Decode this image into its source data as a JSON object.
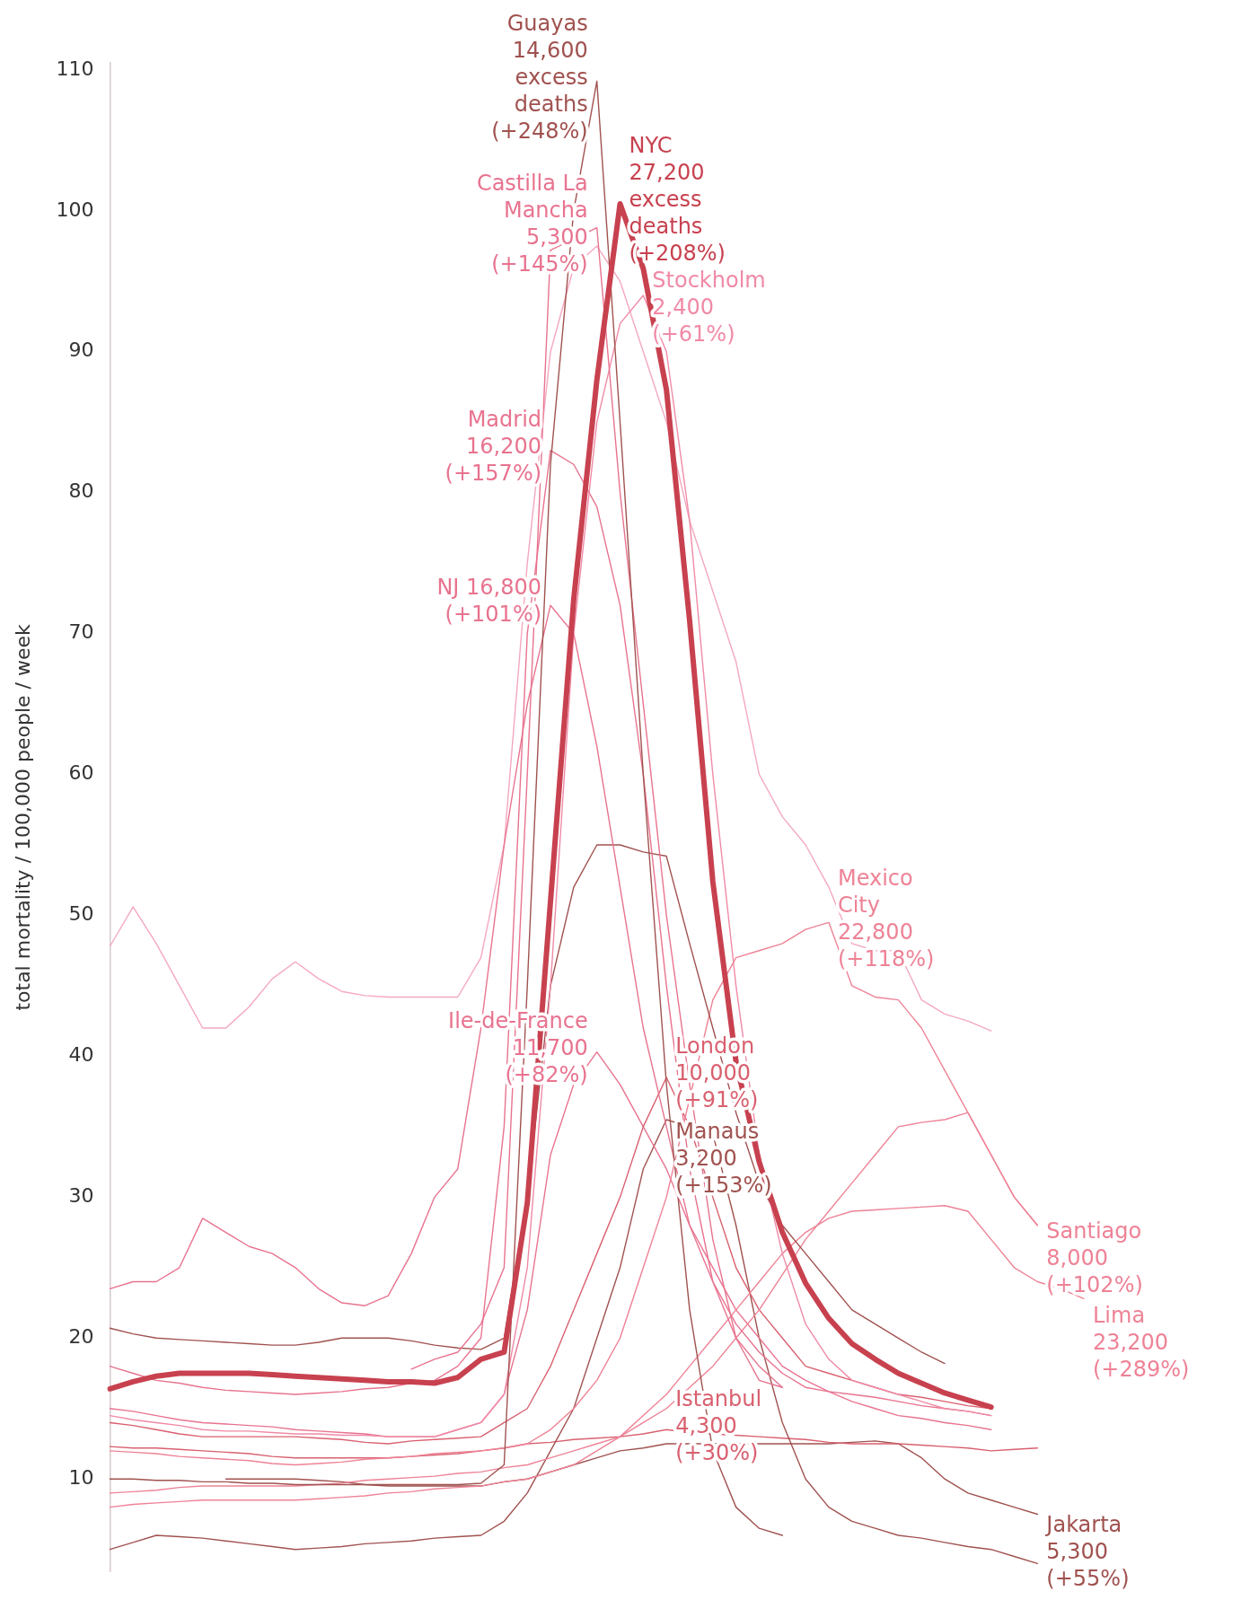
{
  "chart_data": {
    "type": "line",
    "ylabel": "total mortality / 100,000 people / week",
    "categories": [
      null,
      null,
      null,
      null,
      null,
      null,
      null,
      null,
      null,
      null,
      null,
      null,
      null,
      null,
      null,
      null,
      null,
      null,
      null,
      null,
      null,
      null,
      null,
      null,
      null,
      null,
      null,
      null,
      null,
      null,
      null,
      null,
      null,
      null,
      null,
      null,
      null,
      null,
      null,
      null,
      null,
      null,
      null
    ],
    "ylim": [
      3.4,
      110.5
    ],
    "yticks": [
      10,
      20,
      30,
      40,
      50,
      60,
      70,
      80,
      90,
      100,
      110
    ],
    "tick_labels": "y",
    "grid": false,
    "legend": false,
    "marker": "none",
    "line_style": "solid",
    "series": [
      {
        "name": "NYC 27,200 excess deaths (+208%)",
        "color": "#c8414f",
        "values": [
          16.4,
          16.9,
          17.3,
          17.5,
          17.5,
          17.5,
          17.5,
          17.4,
          17.3,
          17.2,
          17.1,
          17.0,
          16.9,
          16.9,
          16.8,
          17.2,
          18.5,
          19,
          29.6,
          51,
          72.4,
          88,
          100.5,
          95.9,
          87.3,
          70.9,
          52.4,
          39.6,
          32.5,
          27.5,
          23.9,
          21.4,
          19.6,
          18.5,
          17.5,
          16.8,
          16.1,
          15.6,
          15.1,
          null,
          null,
          null,
          null
        ]
      },
      {
        "name": "Guayas 14,600 excess deaths (+248%)",
        "color": "#a0524f",
        "values": [
          10,
          10,
          9.9,
          9.9,
          9.8,
          9.8,
          9.7,
          9.7,
          9.6,
          9.6,
          9.6,
          9.6,
          9.6,
          9.6,
          9.6,
          9.6,
          9.7,
          11,
          45,
          82,
          100,
          109.2,
          85,
          60,
          38,
          22,
          12,
          8,
          6.5,
          6,
          null,
          null,
          null,
          null,
          null,
          null,
          null,
          null,
          null,
          null,
          null,
          null,
          null
        ]
      },
      {
        "name": "Castilla La Mancha 5,300 (+145%)",
        "color": "#e8738f",
        "values": [
          null,
          null,
          null,
          null,
          null,
          null,
          null,
          null,
          null,
          null,
          null,
          null,
          null,
          17.8,
          18.5,
          19,
          21,
          25,
          60,
          97.2,
          98,
          98.8,
          80,
          65,
          50,
          38,
          27,
          20,
          17,
          16.5,
          null,
          null,
          null,
          null,
          null,
          null,
          null,
          null,
          null,
          null,
          null,
          null,
          null
        ]
      },
      {
        "name": "Stockholm 2,400 (+61%)",
        "color": "#f08aa6",
        "values": [
          14.5,
          14.2,
          14,
          13.8,
          13.5,
          13.4,
          13.4,
          13.3,
          13.2,
          13.2,
          13.1,
          13.1,
          13,
          13,
          13,
          13.5,
          14,
          16,
          25,
          45,
          70,
          85,
          92,
          94,
          90,
          78,
          60,
          45,
          33,
          26,
          21,
          18.5,
          17,
          16.5,
          16,
          15.5,
          15,
          14.8,
          14.5,
          null,
          null,
          null,
          null
        ]
      },
      {
        "name": "Madrid 16,200 (+157%)",
        "color": "#e8738f",
        "values": [
          18,
          17.5,
          17,
          16.8,
          16.5,
          16.3,
          16.2,
          16.1,
          16,
          16.1,
          16.2,
          16.4,
          16.5,
          16.8,
          17,
          18,
          20,
          35,
          70,
          83,
          82,
          79,
          72,
          60,
          45,
          32,
          24,
          20,
          18,
          16.5,
          null,
          null,
          null,
          null,
          null,
          null,
          null,
          null,
          null,
          null,
          null,
          null,
          null
        ]
      },
      {
        "name": "NJ 16,800 (+101%)",
        "color": "#e8738f",
        "values": [
          23.5,
          24,
          24,
          25,
          28.5,
          27.5,
          26.5,
          26,
          25,
          23.5,
          22.5,
          22.3,
          23,
          26,
          30,
          32,
          42,
          55,
          65,
          72,
          70,
          62,
          52,
          42,
          35,
          28,
          24,
          21,
          19,
          17.5,
          16.5,
          16.2,
          16,
          15.8,
          15.5,
          15.2,
          15,
          14.8,
          14.5,
          null,
          null,
          null,
          null
        ]
      },
      {
        "color": "#f4a8bf",
        "values": [
          47.8,
          50.6,
          48,
          45,
          42,
          42,
          43.5,
          45.5,
          46.7,
          45.5,
          44.6,
          44.3,
          44.2,
          44.2,
          44.2,
          44.2,
          47,
          55,
          75,
          90,
          96,
          97.5,
          95,
          90,
          85,
          78,
          73,
          68,
          60,
          57,
          55,
          52,
          48,
          47.5,
          47.5,
          44,
          43,
          42.5,
          41.8,
          null,
          null,
          null,
          null
        ]
      },
      {
        "color": "#a0524f",
        "values": [
          20.7,
          20.3,
          20,
          19.9,
          19.8,
          19.7,
          19.6,
          19.5,
          19.5,
          19.7,
          20,
          20,
          20,
          19.8,
          19.5,
          19.3,
          19.2,
          20,
          30,
          45,
          52,
          55,
          55,
          54.5,
          54.2,
          48,
          42,
          36,
          31,
          28,
          26,
          24,
          22,
          21,
          20,
          19,
          18.2,
          null,
          null,
          null,
          null,
          null,
          null
        ]
      },
      {
        "name": "Mexico City 22,800 (+118%)",
        "color": "#ee8296",
        "values": [
          12,
          11.9,
          11.8,
          11.6,
          11.5,
          11.4,
          11.3,
          11.1,
          11,
          11.1,
          11.2,
          11.4,
          11.5,
          11.6,
          11.8,
          11.9,
          12,
          12.2,
          12.5,
          13.5,
          15,
          17,
          20,
          25,
          30,
          37,
          44,
          47,
          47.5,
          48,
          49,
          49.5,
          45,
          44.2,
          44,
          42,
          39,
          36,
          33,
          30,
          28,
          null,
          null
        ]
      },
      {
        "name": "Lima 23,200 (+289%)",
        "color": "#ee8296",
        "values": [
          8,
          8.2,
          8.3,
          8.4,
          8.5,
          8.5,
          8.5,
          8.5,
          8.5,
          8.6,
          8.7,
          8.8,
          9,
          9.1,
          9.3,
          9.4,
          9.5,
          9.8,
          10,
          10.5,
          11,
          12,
          13,
          14.5,
          16,
          18,
          20,
          22,
          24,
          26,
          27.5,
          28.5,
          29,
          29.1,
          29.2,
          29.3,
          29.4,
          29,
          27,
          25,
          24,
          23.5,
          22.8
        ]
      },
      {
        "name": "Santiago 8,000 (+102%)",
        "color": "#ee8296",
        "values": [
          9,
          9.1,
          9.2,
          9.4,
          9.5,
          9.5,
          9.5,
          9.5,
          9.5,
          9.6,
          9.7,
          9.9,
          10,
          10.1,
          10.2,
          10.4,
          10.5,
          10.8,
          11,
          11.5,
          12,
          12.5,
          13,
          14,
          15,
          16.5,
          18,
          20,
          22,
          24.5,
          27,
          29,
          31,
          33,
          35,
          35.3,
          35.5,
          36,
          33,
          30,
          28,
          null,
          null
        ]
      },
      {
        "name": "London 10,000 (+91%)",
        "color": "#d9606f",
        "values": [
          14,
          13.8,
          13.5,
          13.2,
          13,
          13,
          13,
          13,
          13,
          12.9,
          12.8,
          12.6,
          12.5,
          12.7,
          12.8,
          12.9,
          13,
          14,
          15,
          18,
          22,
          26,
          30,
          35,
          38.5,
          35,
          30,
          25,
          22,
          20,
          18,
          17.5,
          17,
          16.5,
          16,
          15.8,
          15.5,
          15.2,
          15,
          null,
          null,
          null,
          null
        ]
      },
      {
        "name": "Ile-de-France 11,700 (+82%)",
        "color": "#e8738f",
        "values": [
          15,
          14.8,
          14.5,
          14.2,
          14,
          13.9,
          13.8,
          13.7,
          13.5,
          13.4,
          13.3,
          13.2,
          13,
          13,
          13,
          13.5,
          14,
          16,
          22,
          33,
          38,
          40.3,
          38,
          35,
          32,
          28,
          25,
          22,
          20,
          18,
          17,
          16.2,
          15.5,
          15,
          14.5,
          14.3,
          14,
          13.8,
          13.5,
          null,
          null,
          null,
          null
        ]
      },
      {
        "name": "Manaus 3,200 (+153%)",
        "color": "#a0524f",
        "values": [
          5,
          5.5,
          6,
          5.9,
          5.8,
          5.6,
          5.4,
          5.2,
          5,
          5.1,
          5.2,
          5.4,
          5.5,
          5.6,
          5.8,
          5.9,
          6,
          7,
          9,
          12,
          15,
          20,
          25,
          32,
          35.5,
          35,
          34.5,
          28,
          20,
          14,
          10,
          8,
          7,
          6.5,
          6,
          5.8,
          5.5,
          5.2,
          5,
          4.5,
          4,
          null,
          null
        ]
      },
      {
        "name": "Istanbul 4,300 (+30%)",
        "color": "#d9606f",
        "values": [
          12.3,
          12.2,
          12.2,
          12.1,
          12,
          11.9,
          11.8,
          11.6,
          11.5,
          11.5,
          11.5,
          11.5,
          11.5,
          11.6,
          11.7,
          11.8,
          12,
          12.2,
          12.5,
          12.6,
          12.8,
          12.9,
          13,
          13.2,
          13.5,
          13.3,
          13.2,
          13.1,
          13,
          12.9,
          12.8,
          12.6,
          12.5,
          12.5,
          12.5,
          12.4,
          12.3,
          12.2,
          12,
          12.1,
          12.2,
          null,
          null
        ]
      },
      {
        "name": "Jakarta 5,300 (+55%)",
        "color": "#a0524f",
        "values": [
          null,
          null,
          null,
          null,
          null,
          10,
          10,
          10,
          10,
          9.9,
          9.8,
          9.6,
          9.5,
          9.5,
          9.5,
          9.5,
          9.5,
          9.8,
          10,
          10.5,
          11,
          11.5,
          12,
          12.2,
          12.5,
          12.5,
          12.5,
          12.5,
          12.5,
          12.5,
          12.5,
          12.5,
          12.6,
          12.7,
          12.5,
          11.5,
          10,
          9,
          8.5,
          8,
          7.5,
          null,
          null
        ]
      }
    ]
  }
}
